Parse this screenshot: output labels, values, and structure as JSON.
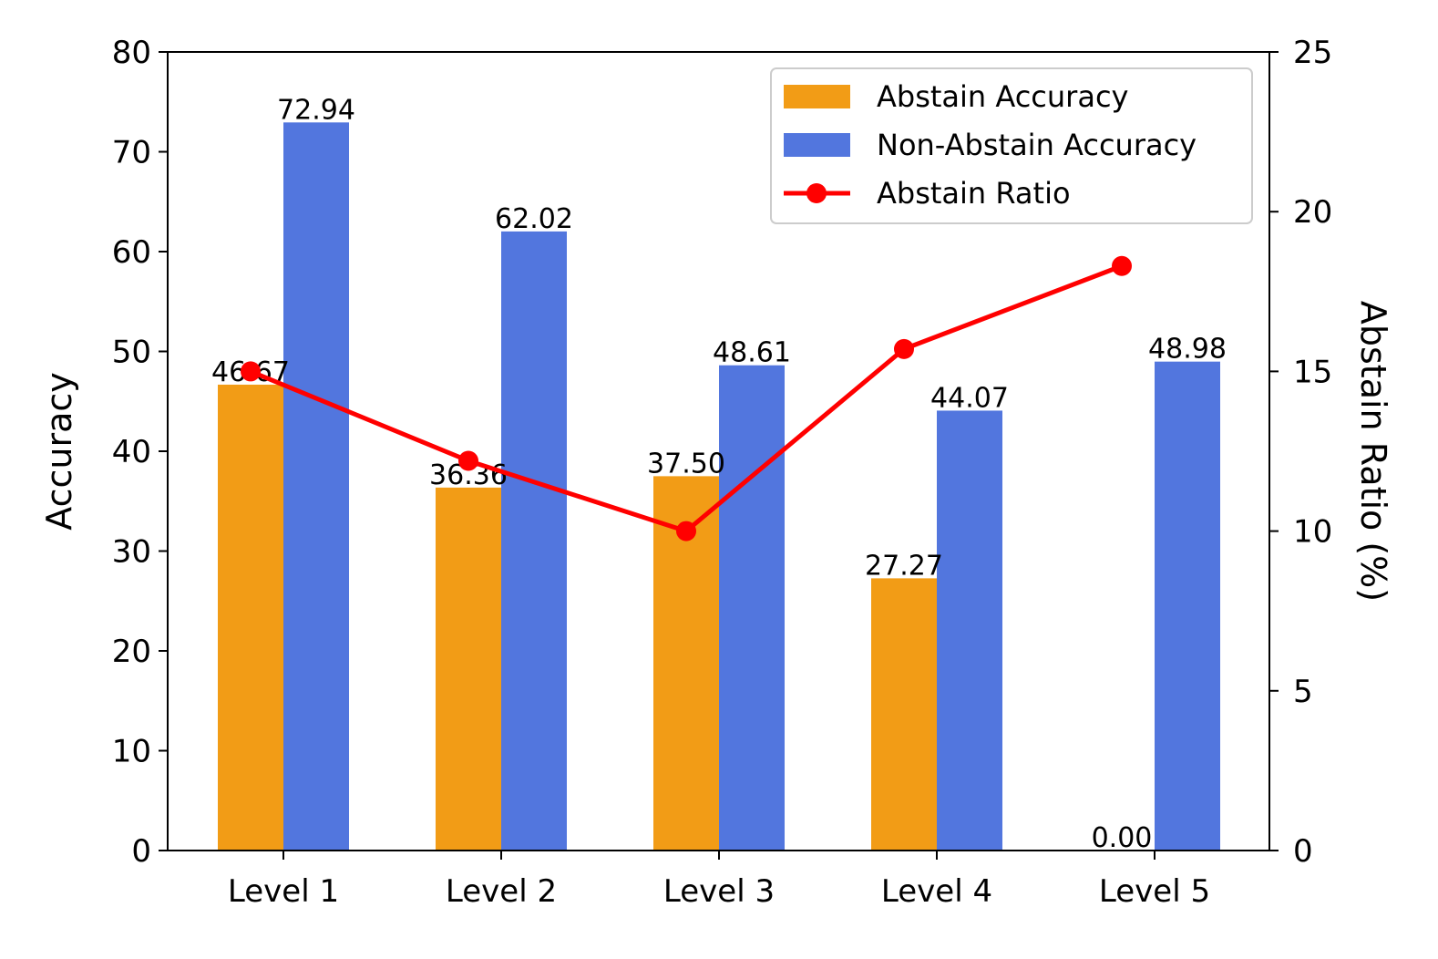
{
  "chart_data": {
    "type": "bar",
    "categories": [
      "Level 1",
      "Level 2",
      "Level 3",
      "Level 4",
      "Level 5"
    ],
    "series": [
      {
        "name": "Abstain Accuracy",
        "kind": "bar",
        "axis": "left",
        "color": "#F29C16",
        "values": [
          46.67,
          36.36,
          37.5,
          27.27,
          0.0
        ],
        "labels": [
          "46.67",
          "36.36",
          "37.50",
          "27.27",
          "0.00"
        ]
      },
      {
        "name": "Non-Abstain Accuracy",
        "kind": "bar",
        "axis": "left",
        "color": "#5276DE",
        "values": [
          72.94,
          62.02,
          48.61,
          44.07,
          48.98
        ],
        "labels": [
          "72.94",
          "62.02",
          "48.61",
          "44.07",
          "48.98"
        ]
      },
      {
        "name": "Abstain Ratio",
        "kind": "line",
        "axis": "right",
        "color": "#FF0000",
        "values": [
          15.0,
          12.2,
          10.0,
          15.7,
          18.3
        ]
      }
    ],
    "ylabel": "Accuracy",
    "ylim": [
      0,
      80
    ],
    "yticks": [
      0,
      10,
      20,
      30,
      40,
      50,
      60,
      70,
      80
    ],
    "y2label": "Abstain Ratio (%)",
    "y2lim": [
      0,
      25
    ],
    "y2ticks": [
      0,
      5,
      10,
      15,
      20,
      25
    ],
    "legend_position": "top-right",
    "grid": false
  }
}
